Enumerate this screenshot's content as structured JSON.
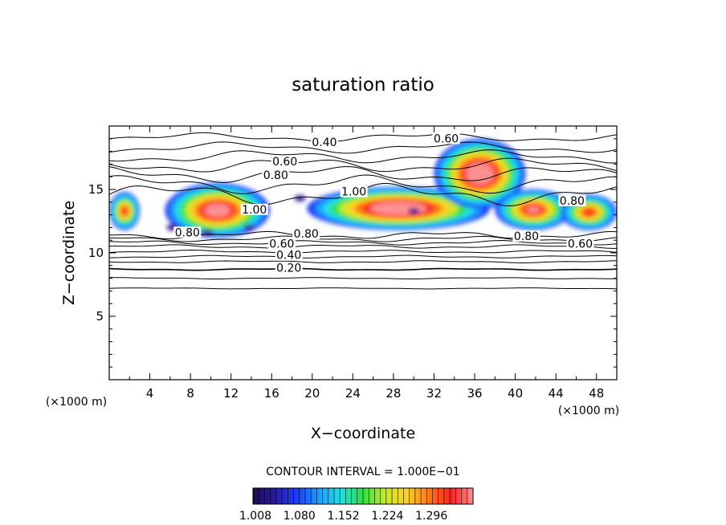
{
  "chart_data": {
    "type": "heatmap",
    "title": "saturation ratio",
    "xlabel": "X−coordinate",
    "ylabel": "Z−coordinate",
    "x_unit_label": "(×1000 m)",
    "xlim": [
      0,
      50
    ],
    "ylim": [
      0,
      20
    ],
    "x_ticks": [
      4,
      8,
      12,
      16,
      20,
      24,
      28,
      32,
      36,
      40,
      44,
      48
    ],
    "y_ticks": [
      5,
      10,
      15
    ],
    "contour_interval_text": "CONTOUR INTERVAL = 1.000E−01",
    "colorbar": {
      "ticks": [
        "1.008",
        "1.080",
        "1.152",
        "1.224",
        "1.296"
      ],
      "colors": [
        "#1e0a50",
        "#2a1aa0",
        "#1a3cff",
        "#1aa0ff",
        "#20e0e0",
        "#30e040",
        "#c8e830",
        "#ffd020",
        "#ff7818",
        "#ff2020",
        "#ff9090"
      ]
    },
    "contour_labels": [
      {
        "text": "0.20",
        "x": 17.7,
        "z": 8.7
      },
      {
        "text": "0.40",
        "x": 17.7,
        "z": 9.7
      },
      {
        "text": "0.60",
        "x": 17.0,
        "z": 10.6
      },
      {
        "text": "0.80",
        "x": 19.4,
        "z": 11.4
      },
      {
        "text": "0.80",
        "x": 7.7,
        "z": 11.5
      },
      {
        "text": "1.00",
        "x": 14.3,
        "z": 13.3
      },
      {
        "text": "1.00",
        "x": 24.1,
        "z": 14.7
      },
      {
        "text": "0.80",
        "x": 16.4,
        "z": 16.0
      },
      {
        "text": "0.60",
        "x": 17.3,
        "z": 17.1
      },
      {
        "text": "0.40",
        "x": 21.2,
        "z": 18.6
      },
      {
        "text": "0.60",
        "x": 33.2,
        "z": 18.9
      },
      {
        "text": "0.80",
        "x": 45.6,
        "z": 14.0
      },
      {
        "text": "0.80",
        "x": 41.1,
        "z": 11.2
      },
      {
        "text": "0.60",
        "x": 46.4,
        "z": 10.6
      }
    ],
    "high_regions": [
      {
        "x": [
          0,
          3
        ],
        "z": [
          11.8,
          14.8
        ],
        "peak": 1.2
      },
      {
        "x": [
          5.5,
          15.8
        ],
        "z": [
          11.2,
          15.5
        ],
        "peak": 1.26
      },
      {
        "x": [
          19.5,
          37.5
        ],
        "z": [
          11.8,
          15.2
        ],
        "peak": 1.3
      },
      {
        "x": [
          32,
          41
        ],
        "z": [
          13.5,
          19
        ],
        "peak": 1.3
      },
      {
        "x": [
          38,
          45.5
        ],
        "z": [
          11.8,
          15
        ],
        "peak": 1.25
      },
      {
        "x": [
          44.5,
          50
        ],
        "z": [
          11.8,
          14.6
        ],
        "peak": 1.2
      }
    ]
  }
}
